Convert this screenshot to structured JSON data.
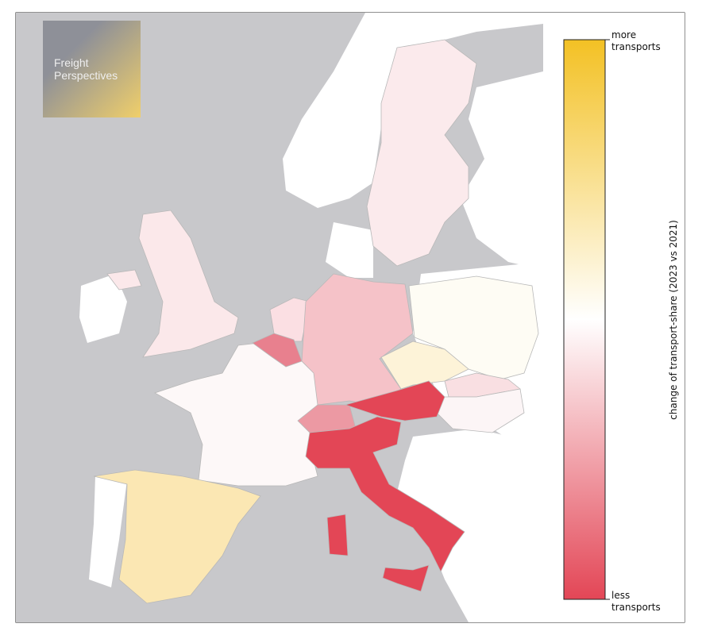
{
  "logo": {
    "line1": "Freight",
    "line2": "Perspectives"
  },
  "colorbar": {
    "label": "change of transport-share (2023 vs 2021)",
    "top_label": [
      "more",
      "transports"
    ],
    "bottom_label": [
      "less",
      "transports"
    ]
  }
}
